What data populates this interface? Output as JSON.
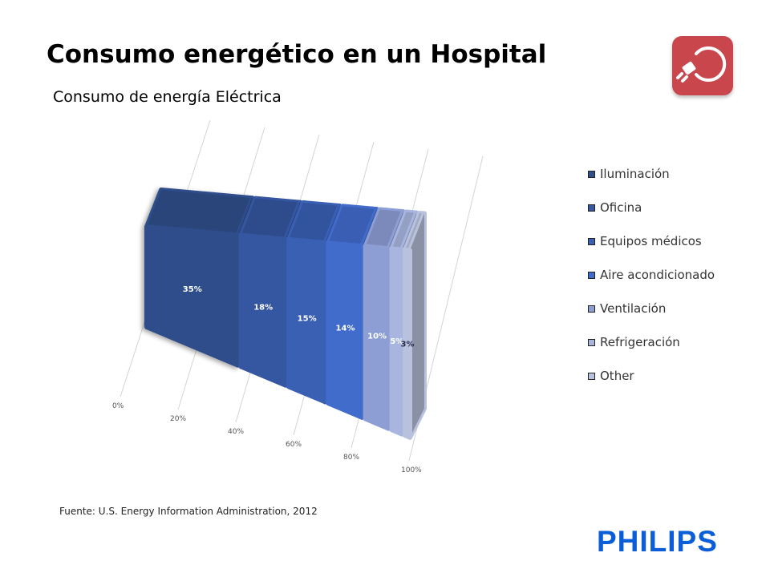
{
  "page": {
    "title": "Consumo energético en un Hospital",
    "source": "Fuente: U.S. Energy Information Administration, 2012",
    "brand": "PHILIPS",
    "app_icon": "power-plug-icon"
  },
  "chart_data": {
    "type": "bar",
    "orientation": "horizontal-stacked-100",
    "title": "Consumo de energía Eléctrica",
    "categories": [
      "Consumo de energía Eléctrica"
    ],
    "series": [
      {
        "name": "Iluminación",
        "values": [
          35
        ],
        "label": "35%",
        "color": "#2f4e8a"
      },
      {
        "name": "Oficina",
        "values": [
          18
        ],
        "label": "18%",
        "color": "#3556a0"
      },
      {
        "name": "Equipos médicos",
        "values": [
          15
        ],
        "label": "15%",
        "color": "#3a60b4"
      },
      {
        "name": "Aire acondicionado",
        "values": [
          14
        ],
        "label": "14%",
        "color": "#416ccc"
      },
      {
        "name": "Ventilación",
        "values": [
          10
        ],
        "label": "10%",
        "color": "#8d9ed4"
      },
      {
        "name": "Refrigeración",
        "values": [
          5
        ],
        "label": "5%",
        "color": "#a8b5df"
      },
      {
        "name": "Other",
        "values": [
          3
        ],
        "label": "3%",
        "color": "#b9c2dd"
      }
    ],
    "axis": {
      "ticks": [
        "0%",
        "20%",
        "40%",
        "60%",
        "80%",
        "100%"
      ],
      "range": [
        0,
        100
      ]
    },
    "grid": true,
    "legend": "right"
  }
}
